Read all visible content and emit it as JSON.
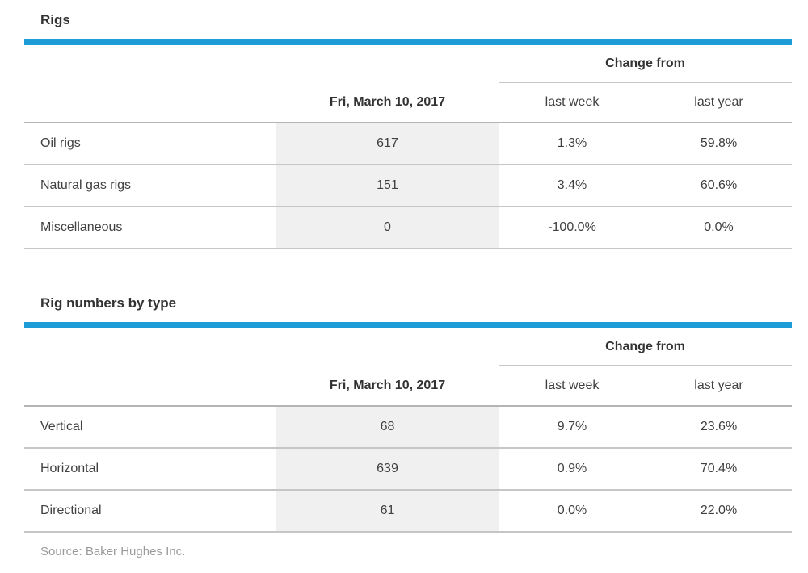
{
  "accent_color": "#1e9cd7",
  "value_cell_bg": "#f0f0f0",
  "tables": [
    {
      "title": "Rigs",
      "date_header": "Fri, March 10, 2017",
      "change_from_label": "Change from",
      "col_headers": [
        "last week",
        "last year"
      ],
      "rows": [
        {
          "label": "Oil rigs",
          "value": "617",
          "last_week": "1.3%",
          "last_year": "59.8%"
        },
        {
          "label": "Natural gas rigs",
          "value": "151",
          "last_week": "3.4%",
          "last_year": "60.6%"
        },
        {
          "label": "Miscellaneous",
          "value": "0",
          "last_week": "-100.0%",
          "last_year": "0.0%"
        }
      ]
    },
    {
      "title": "Rig numbers by type",
      "date_header": "Fri, March 10, 2017",
      "change_from_label": "Change from",
      "col_headers": [
        "last week",
        "last year"
      ],
      "rows": [
        {
          "label": "Vertical",
          "value": "68",
          "last_week": "9.7%",
          "last_year": "23.6%"
        },
        {
          "label": "Horizontal",
          "value": "639",
          "last_week": "0.9%",
          "last_year": "70.4%"
        },
        {
          "label": "Directional",
          "value": "61",
          "last_week": "0.0%",
          "last_year": "22.0%"
        }
      ]
    }
  ],
  "source": "Source: Baker Hughes Inc.",
  "chart_data": [
    {
      "type": "table",
      "title": "Rigs",
      "columns": [
        "",
        "Fri, March 10, 2017",
        "Change from last week",
        "Change from last year"
      ],
      "rows": [
        [
          "Oil rigs",
          617,
          "1.3%",
          "59.8%"
        ],
        [
          "Natural gas rigs",
          151,
          "3.4%",
          "60.6%"
        ],
        [
          "Miscellaneous",
          0,
          "-100.0%",
          "0.0%"
        ]
      ]
    },
    {
      "type": "table",
      "title": "Rig numbers by type",
      "columns": [
        "",
        "Fri, March 10, 2017",
        "Change from last week",
        "Change from last year"
      ],
      "rows": [
        [
          "Vertical",
          68,
          "9.7%",
          "23.6%"
        ],
        [
          "Horizontal",
          639,
          "0.9%",
          "70.4%"
        ],
        [
          "Directional",
          61,
          "0.0%",
          "22.0%"
        ]
      ]
    }
  ]
}
